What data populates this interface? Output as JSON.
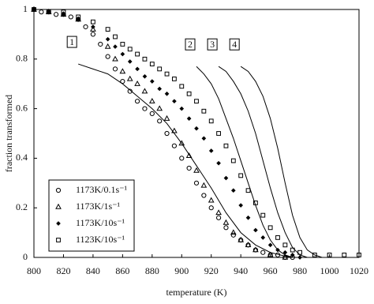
{
  "chart_data": {
    "type": "scatter",
    "x_label": "temperature (K)",
    "y_label": "fraction transformed",
    "xlim": [
      800,
      1020
    ],
    "xticks": [
      800,
      820,
      840,
      860,
      880,
      900,
      920,
      940,
      960,
      980,
      1000,
      1020
    ],
    "ylim": [
      0,
      1
    ],
    "yticks": [
      0,
      0.2,
      0.4,
      0.6,
      0.8,
      1
    ],
    "legend": "lower left",
    "grid": false,
    "series": [
      {
        "name": "1173K/0.1s⁻¹",
        "marker": "circle",
        "color": "#000000",
        "x": [
          800,
          805,
          810,
          815,
          820,
          825,
          830,
          835,
          840,
          845,
          850,
          855,
          860,
          865,
          870,
          875,
          880,
          885,
          890,
          895,
          900,
          905,
          910,
          915,
          920,
          925,
          930,
          935,
          940,
          945,
          950,
          955,
          960,
          965,
          970,
          975
        ],
        "values": [
          1.0,
          0.99,
          0.99,
          0.98,
          0.98,
          0.97,
          0.96,
          0.93,
          0.9,
          0.86,
          0.81,
          0.76,
          0.71,
          0.67,
          0.63,
          0.6,
          0.58,
          0.55,
          0.5,
          0.45,
          0.4,
          0.36,
          0.3,
          0.25,
          0.2,
          0.16,
          0.12,
          0.09,
          0.07,
          0.05,
          0.03,
          0.02,
          0.01,
          0.01,
          0,
          0
        ]
      },
      {
        "name": "1173K/1s⁻¹",
        "marker": "triangle",
        "color": "#000000",
        "x": [
          800,
          810,
          820,
          830,
          840,
          850,
          855,
          860,
          865,
          870,
          875,
          880,
          885,
          890,
          895,
          900,
          905,
          910,
          915,
          920,
          925,
          930,
          935,
          940,
          945,
          950,
          960,
          970
        ],
        "values": [
          1,
          0.99,
          0.98,
          0.96,
          0.92,
          0.85,
          0.8,
          0.75,
          0.72,
          0.7,
          0.67,
          0.63,
          0.6,
          0.56,
          0.51,
          0.46,
          0.41,
          0.35,
          0.29,
          0.23,
          0.18,
          0.14,
          0.1,
          0.07,
          0.05,
          0.03,
          0.01,
          0
        ]
      },
      {
        "name": "1173K/10s⁻¹",
        "marker": "diamond",
        "color": "#000000",
        "x": [
          800,
          810,
          820,
          830,
          840,
          850,
          855,
          860,
          865,
          870,
          875,
          880,
          885,
          890,
          895,
          900,
          905,
          910,
          915,
          920,
          925,
          930,
          935,
          940,
          945,
          950,
          955,
          960,
          965,
          970,
          975,
          980
        ],
        "values": [
          1,
          0.99,
          0.98,
          0.96,
          0.93,
          0.88,
          0.85,
          0.82,
          0.79,
          0.76,
          0.73,
          0.71,
          0.68,
          0.66,
          0.63,
          0.6,
          0.56,
          0.52,
          0.48,
          0.43,
          0.38,
          0.32,
          0.27,
          0.21,
          0.16,
          0.11,
          0.08,
          0.05,
          0.03,
          0.02,
          0.01,
          0
        ]
      },
      {
        "name": "1123K/10s⁻¹",
        "marker": "square",
        "color": "#000000",
        "x": [
          800,
          810,
          820,
          830,
          840,
          850,
          855,
          860,
          865,
          870,
          875,
          880,
          885,
          890,
          895,
          900,
          905,
          910,
          915,
          920,
          925,
          930,
          935,
          940,
          945,
          950,
          955,
          960,
          965,
          970,
          975,
          980,
          990,
          1000,
          1010,
          1020
        ],
        "values": [
          1,
          0.99,
          0.99,
          0.97,
          0.95,
          0.92,
          0.89,
          0.86,
          0.84,
          0.82,
          0.8,
          0.78,
          0.76,
          0.74,
          0.72,
          0.69,
          0.66,
          0.63,
          0.59,
          0.55,
          0.5,
          0.45,
          0.39,
          0.33,
          0.27,
          0.22,
          0.17,
          0.12,
          0.08,
          0.05,
          0.03,
          0.02,
          0.01,
          0.01,
          0.01,
          0.01
        ]
      },
      {
        "name": "1",
        "marker": "line",
        "color": "#000000",
        "x": [
          830,
          840,
          850,
          860,
          870,
          880,
          890,
          900,
          910,
          920,
          930,
          940,
          950,
          960,
          970,
          975
        ],
        "values": [
          0.78,
          0.76,
          0.74,
          0.7,
          0.65,
          0.6,
          0.54,
          0.46,
          0.37,
          0.28,
          0.18,
          0.1,
          0.05,
          0.02,
          0.005,
          0
        ]
      },
      {
        "name": "2",
        "marker": "line",
        "color": "#000000",
        "x": [
          910,
          915,
          920,
          925,
          930,
          935,
          940,
          945,
          950,
          955,
          960,
          965,
          970,
          975
        ],
        "values": [
          0.77,
          0.74,
          0.7,
          0.64,
          0.56,
          0.48,
          0.39,
          0.3,
          0.21,
          0.13,
          0.07,
          0.03,
          0.01,
          0
        ]
      },
      {
        "name": "3",
        "marker": "line",
        "color": "#000000",
        "x": [
          925,
          930,
          935,
          940,
          945,
          950,
          955,
          960,
          965,
          970,
          975,
          980,
          985
        ],
        "values": [
          0.77,
          0.75,
          0.71,
          0.66,
          0.59,
          0.5,
          0.39,
          0.28,
          0.18,
          0.1,
          0.04,
          0.01,
          0
        ]
      },
      {
        "name": "4",
        "marker": "line",
        "color": "#000000",
        "x": [
          940,
          945,
          950,
          955,
          960,
          965,
          970,
          975,
          980,
          985,
          990,
          995
        ],
        "values": [
          0.77,
          0.75,
          0.71,
          0.65,
          0.56,
          0.44,
          0.3,
          0.17,
          0.08,
          0.03,
          0.01,
          0
        ]
      }
    ]
  }
}
